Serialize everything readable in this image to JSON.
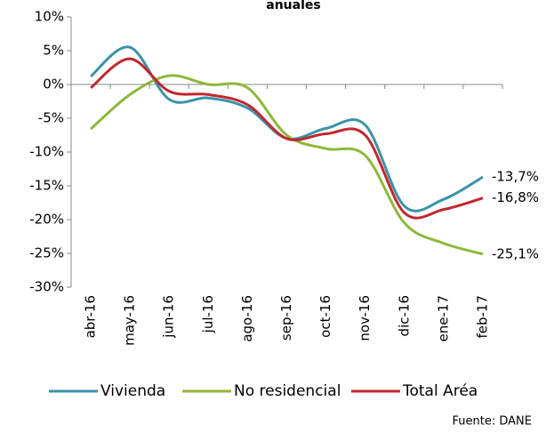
{
  "chart_data": {
    "type": "line",
    "title": "anuales",
    "categories": [
      "abr-16",
      "may-16",
      "jun-16",
      "jul-16",
      "ago-16",
      "sep-16",
      "oct-16",
      "nov-16",
      "dic-16",
      "ene-17",
      "feb-17"
    ],
    "series": [
      {
        "name": "Vivienda",
        "color": "#3a93a8",
        "values": [
          1.2,
          5.5,
          -2.2,
          -2,
          -3.5,
          -8,
          -6.5,
          -6,
          -18,
          -17,
          -13.7
        ],
        "value_labels": [
          null,
          null,
          null,
          null,
          null,
          null,
          null,
          null,
          null,
          null,
          "-13,7%"
        ]
      },
      {
        "name": "No residencial",
        "color": "#8db83a",
        "values": [
          -6.6,
          -1.5,
          1.3,
          0,
          -0.5,
          -7.5,
          -9.5,
          -10.5,
          -20.5,
          -23.5,
          -25.1
        ],
        "value_labels": [
          null,
          null,
          null,
          null,
          null,
          null,
          null,
          null,
          null,
          null,
          "-25,1%"
        ]
      },
      {
        "name": "Total Aréa",
        "color": "#c0282d",
        "values": [
          -0.5,
          3.8,
          -1,
          -1.5,
          -3,
          -8,
          -7.3,
          -7.5,
          -19,
          -18.5,
          -16.8
        ],
        "value_labels": [
          null,
          null,
          null,
          null,
          null,
          null,
          null,
          null,
          null,
          null,
          "-16,8%"
        ]
      }
    ],
    "ylim": [
      -30,
      10
    ],
    "yticks": [
      {
        "value": -30,
        "label": "-30%"
      },
      {
        "value": -25,
        "label": "-25%"
      },
      {
        "value": -20,
        "label": "-20%"
      },
      {
        "value": -15,
        "label": "-15%"
      },
      {
        "value": -10,
        "label": "-10%"
      },
      {
        "value": -5,
        "label": "-5%"
      },
      {
        "value": 0,
        "label": "0%"
      },
      {
        "value": 5,
        "label": "5%"
      },
      {
        "value": 10,
        "label": "10%"
      }
    ],
    "legend": "bottom",
    "source": "Fuente: DANE"
  }
}
